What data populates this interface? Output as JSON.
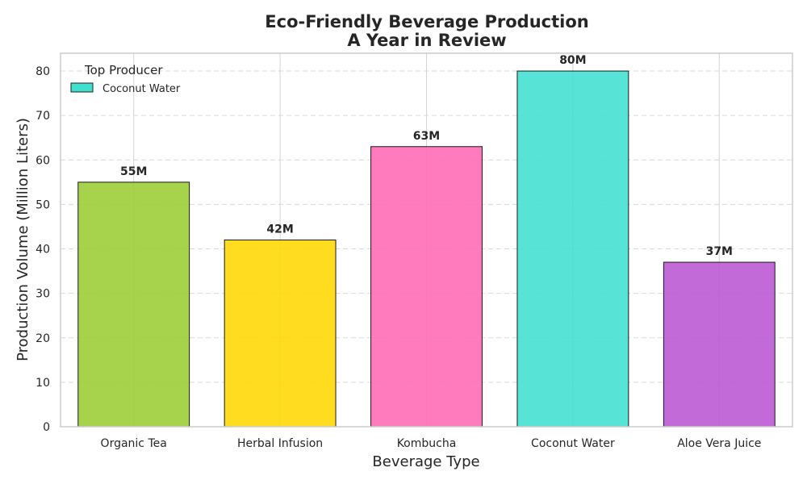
{
  "chart_data": {
    "type": "bar",
    "title_line1": "Eco-Friendly Beverage Production",
    "title_line2": "A Year in Review",
    "xlabel": "Beverage Type",
    "ylabel": "Production Volume (Million Liters)",
    "categories": [
      "Organic Tea",
      "Herbal Infusion",
      "Kombucha",
      "Coconut Water",
      "Aloe Vera Juice"
    ],
    "values": [
      55,
      42,
      63,
      80,
      37
    ],
    "value_labels": [
      "55M",
      "42M",
      "63M",
      "80M",
      "37M"
    ],
    "colors": [
      "#9ACD32",
      "#FFD700",
      "#FF69B4",
      "#40E0D0",
      "#BA55D3"
    ],
    "ylim": [
      0,
      84
    ],
    "yticks": [
      0,
      10,
      20,
      30,
      40,
      50,
      60,
      70,
      80
    ],
    "grid": true,
    "legend": {
      "title": "Top Producer",
      "entries": [
        {
          "label": "Coconut Water",
          "color": "#40E0D0"
        }
      ],
      "placement": "top-left"
    }
  }
}
